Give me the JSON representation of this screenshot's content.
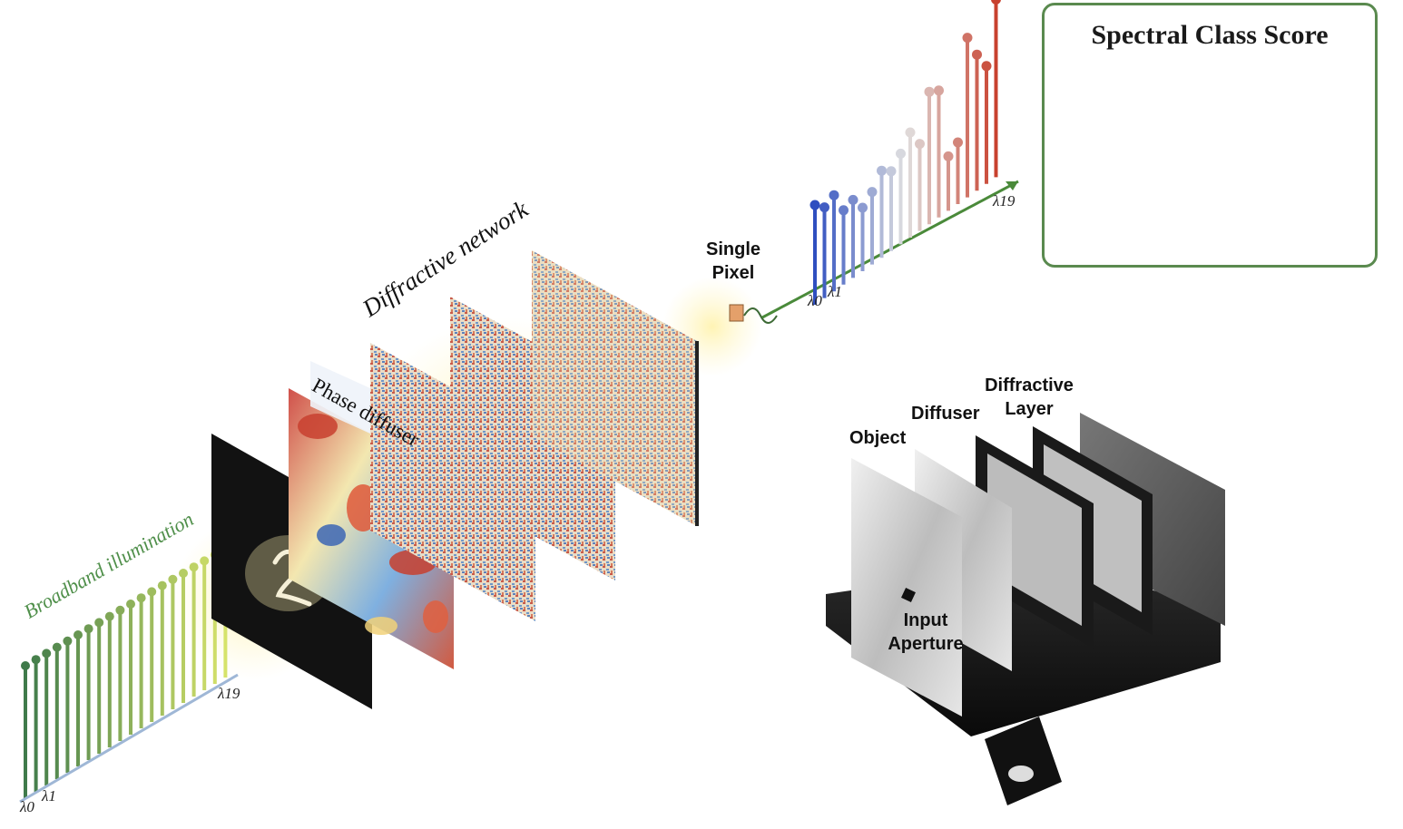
{
  "spectral_class_score": {
    "title": "Spectral Class Score"
  },
  "illumination": {
    "label": "Broadband illumination",
    "lambda_start": "λ0",
    "lambda_second": "λ1",
    "lambda_end": "λ19"
  },
  "network": {
    "label": "Diffractive network",
    "phase_diffuser_label": "Phase diffuser"
  },
  "detector": {
    "label_line1": "Single",
    "label_line2": "Pixel"
  },
  "output_spectrum": {
    "lambda_start": "λ0",
    "lambda_second": "λ1",
    "lambda_end": "λ19"
  },
  "physical_setup": {
    "object_label": "Object",
    "diffuser_label": "Diffuser",
    "layer_label_line1": "Diffractive",
    "layer_label_line2": "Layer",
    "aperture_label_line1": "Input",
    "aperture_label_line2": "Aperture"
  },
  "colors": {
    "green_dark": "#3f7a4a",
    "green_light": "#d6e36a",
    "blue": "#2f4fc0",
    "red": "#c8412e",
    "frame": "#5a8a4f"
  }
}
